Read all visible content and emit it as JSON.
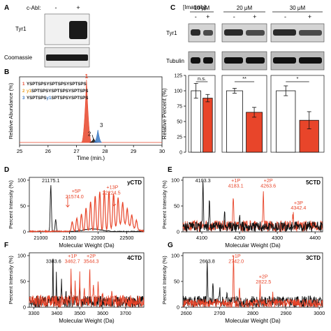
{
  "colors": {
    "red": "#e8452a",
    "blue": "#3a78c3",
    "black": "#111111",
    "blot_light": "#cfcfcf",
    "blot_dark": "#1a1a1a"
  },
  "panels": {
    "A": "A",
    "B": "B",
    "C": "C",
    "D": "D",
    "E": "E",
    "F": "F",
    "G": "G"
  },
  "panel_a": {
    "cabl_label": "c-Abl:",
    "minus": "-",
    "plus": "+",
    "tyr1_label": "Tyr1",
    "coomassie_label": "Coomassie"
  },
  "panel_c": {
    "imatinib_label": "[Imatinib]:",
    "groups": [
      {
        "conc": "10 μM",
        "minus": "-",
        "plus": "+",
        "sig": "n.s."
      },
      {
        "conc": "20 μM",
        "minus": "-",
        "plus": "+",
        "sig": "**"
      },
      {
        "conc": "30 μM",
        "minus": "-",
        "plus": "+",
        "sig": "*"
      }
    ],
    "tyr1_label": "Tyr1",
    "tubulin_label": "Tubulin"
  },
  "chart_data": [
    {
      "panel": "B",
      "type": "line",
      "xlabel": "Time (min.)",
      "ylabel": "Relative Abundance (%)",
      "xlim": [
        25,
        30
      ],
      "x_ticks": [
        25,
        26,
        27,
        28,
        29,
        30
      ],
      "peptides": [
        {
          "index": "1",
          "sequence": "YSPTSPSYSPTSPSYSPTSPS",
          "color": "#e8452a"
        },
        {
          "index": "2",
          "prefix": "",
          "mark": "y1",
          "sequence": "SPTSPSYSPTSPSYSPTSPS",
          "color": "#e8a12a"
        },
        {
          "index": "3",
          "prefix": "YSPTSPS",
          "mark": "y1",
          "sequence": "SPTSPSYSPTSPS",
          "color": "#3a78c3"
        }
      ],
      "peaks": [
        {
          "label": "1",
          "x": 27.35,
          "height": 100,
          "color": "#e8452a"
        },
        {
          "label": "2",
          "x": 27.6,
          "height": 6,
          "color": "#111111"
        },
        {
          "label": "3",
          "x": 27.75,
          "height": 20,
          "color": "#3a78c3"
        }
      ]
    },
    {
      "panel": "C",
      "type": "bar",
      "ylabel": "Relative Percent (%)",
      "ylim": [
        0,
        125
      ],
      "y_ticks": [
        0,
        25,
        50,
        75,
        100,
        125
      ],
      "series": [
        {
          "name": "-",
          "color": "#ffffff",
          "values": [
            100,
            100,
            100
          ],
          "errors": [
            12,
            4,
            8
          ]
        },
        {
          "name": "+",
          "color": "#e8452a",
          "values": [
            88,
            65,
            52
          ],
          "errors": [
            6,
            8,
            14
          ]
        }
      ],
      "categories": [
        "10 μM",
        "20 μM",
        "30 μM"
      ]
    },
    {
      "panel": "D",
      "type": "line",
      "title": "yCTD",
      "xlabel": "Molecular Weight (Da)",
      "ylabel": "Percent Intensity (%)",
      "xlim": [
        20800,
        22800
      ],
      "ylim": [
        0,
        100
      ],
      "x_ticks": [
        21000,
        21500,
        22000,
        22500
      ],
      "y_ticks": [
        0,
        50,
        100
      ],
      "annotations": [
        {
          "text": "21175.1",
          "color": "#111111"
        },
        {
          "text": "+5P",
          "color": "#e8452a"
        },
        {
          "text": "21574.0",
          "color": "#e8452a"
        },
        {
          "text": "+13P",
          "color": "#e8452a"
        },
        {
          "text": "22224.5",
          "color": "#e8452a"
        }
      ]
    },
    {
      "panel": "E",
      "type": "line",
      "title": "5CTD",
      "xlabel": "Molecular Weight (Da)",
      "ylabel": "Percent Intensity (%)",
      "xlim": [
        4050,
        4420
      ],
      "ylim": [
        0,
        100
      ],
      "x_ticks": [
        4100,
        4200,
        4300,
        4400
      ],
      "y_ticks": [
        0,
        50,
        100
      ],
      "annotations": [
        {
          "text": "4103.3",
          "color": "#111111"
        },
        {
          "text": "+1P",
          "color": "#e8452a"
        },
        {
          "text": "4183.1",
          "color": "#e8452a"
        },
        {
          "text": "+2P",
          "color": "#e8452a"
        },
        {
          "text": "4263.6",
          "color": "#e8452a"
        },
        {
          "text": "+3P",
          "color": "#e8452a"
        },
        {
          "text": "4342.4",
          "color": "#e8452a"
        }
      ]
    },
    {
      "panel": "F",
      "type": "line",
      "title": "4CTD",
      "xlabel": "Molecular Weight (Da)",
      "ylabel": "Percent Intensity (%)",
      "xlim": [
        3280,
        3780
      ],
      "ylim": [
        0,
        100
      ],
      "x_ticks": [
        3300,
        3400,
        3500,
        3600,
        3700
      ],
      "y_ticks": [
        0,
        50,
        100
      ],
      "annotations": [
        {
          "text": "3383.6",
          "color": "#111111"
        },
        {
          "text": "+1P",
          "color": "#e8452a"
        },
        {
          "text": "3462.7",
          "color": "#e8452a"
        },
        {
          "text": "+2P",
          "color": "#e8452a"
        },
        {
          "text": "3544.3",
          "color": "#e8452a"
        }
      ]
    },
    {
      "panel": "G",
      "type": "line",
      "title": "3CTD",
      "xlabel": "Molecular Weight (Da)",
      "ylabel": "Percent Intensity (%)",
      "xlim": [
        2590,
        3010
      ],
      "ylim": [
        0,
        100
      ],
      "x_ticks": [
        2600,
        2700,
        2800,
        2900,
        3000
      ],
      "y_ticks": [
        0,
        50,
        100
      ],
      "annotations": [
        {
          "text": "2663.8",
          "color": "#111111"
        },
        {
          "text": "+1P",
          "color": "#e8452a"
        },
        {
          "text": "2742.0",
          "color": "#e8452a"
        },
        {
          "text": "+2P",
          "color": "#e8452a"
        },
        {
          "text": "2822.5",
          "color": "#e8452a"
        }
      ]
    }
  ]
}
